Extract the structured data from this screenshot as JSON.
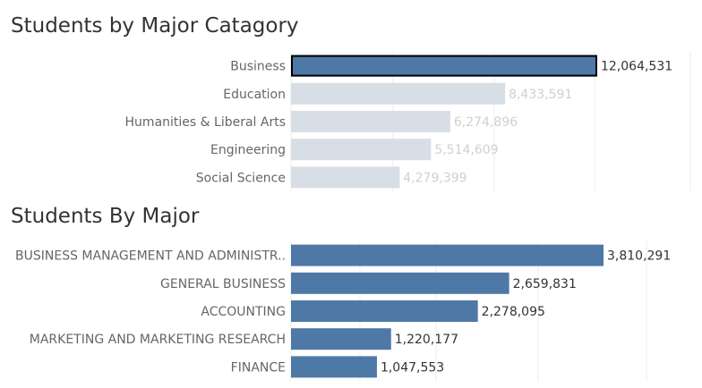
{
  "chart_data": [
    {
      "type": "bar",
      "orientation": "horizontal",
      "title": "Students by Major Catagory",
      "categories": [
        "Business",
        "Education",
        "Humanities & Liberal Arts",
        "Engineering",
        "Social Science"
      ],
      "values": [
        12064531,
        8433591,
        6274896,
        5514609,
        4279399
      ],
      "value_labels": [
        "12,064,531",
        "8,433,591",
        "6,274,896",
        "5,514,609",
        "4,279,399"
      ],
      "selected_category": "Business",
      "xlim": [
        0,
        16000000
      ],
      "grid": true
    },
    {
      "type": "bar",
      "orientation": "horizontal",
      "title": "Students By Major",
      "categories": [
        "BUSINESS MANAGEMENT AND ADMINISTR..",
        "GENERAL BUSINESS",
        "ACCOUNTING",
        "MARKETING AND MARKETING RESEARCH",
        "FINANCE"
      ],
      "values": [
        3810291,
        2659831,
        2278095,
        1220177,
        1047553
      ],
      "value_labels": [
        "3,810,291",
        "2,659,831",
        "2,278,095",
        "1,220,177",
        "1,047,553"
      ],
      "xlim": [
        0,
        3810291
      ],
      "grid": true
    }
  ],
  "colors": {
    "selected_bar": "#4e79a7",
    "dimmed_bar": "#d7dee6",
    "selected_text": "#333333",
    "dimmed_text": "#d0d0d0",
    "title_text": "#333333",
    "category_text": "#666666",
    "gridline": "#eeeeee",
    "selection_outline": "#000000"
  }
}
